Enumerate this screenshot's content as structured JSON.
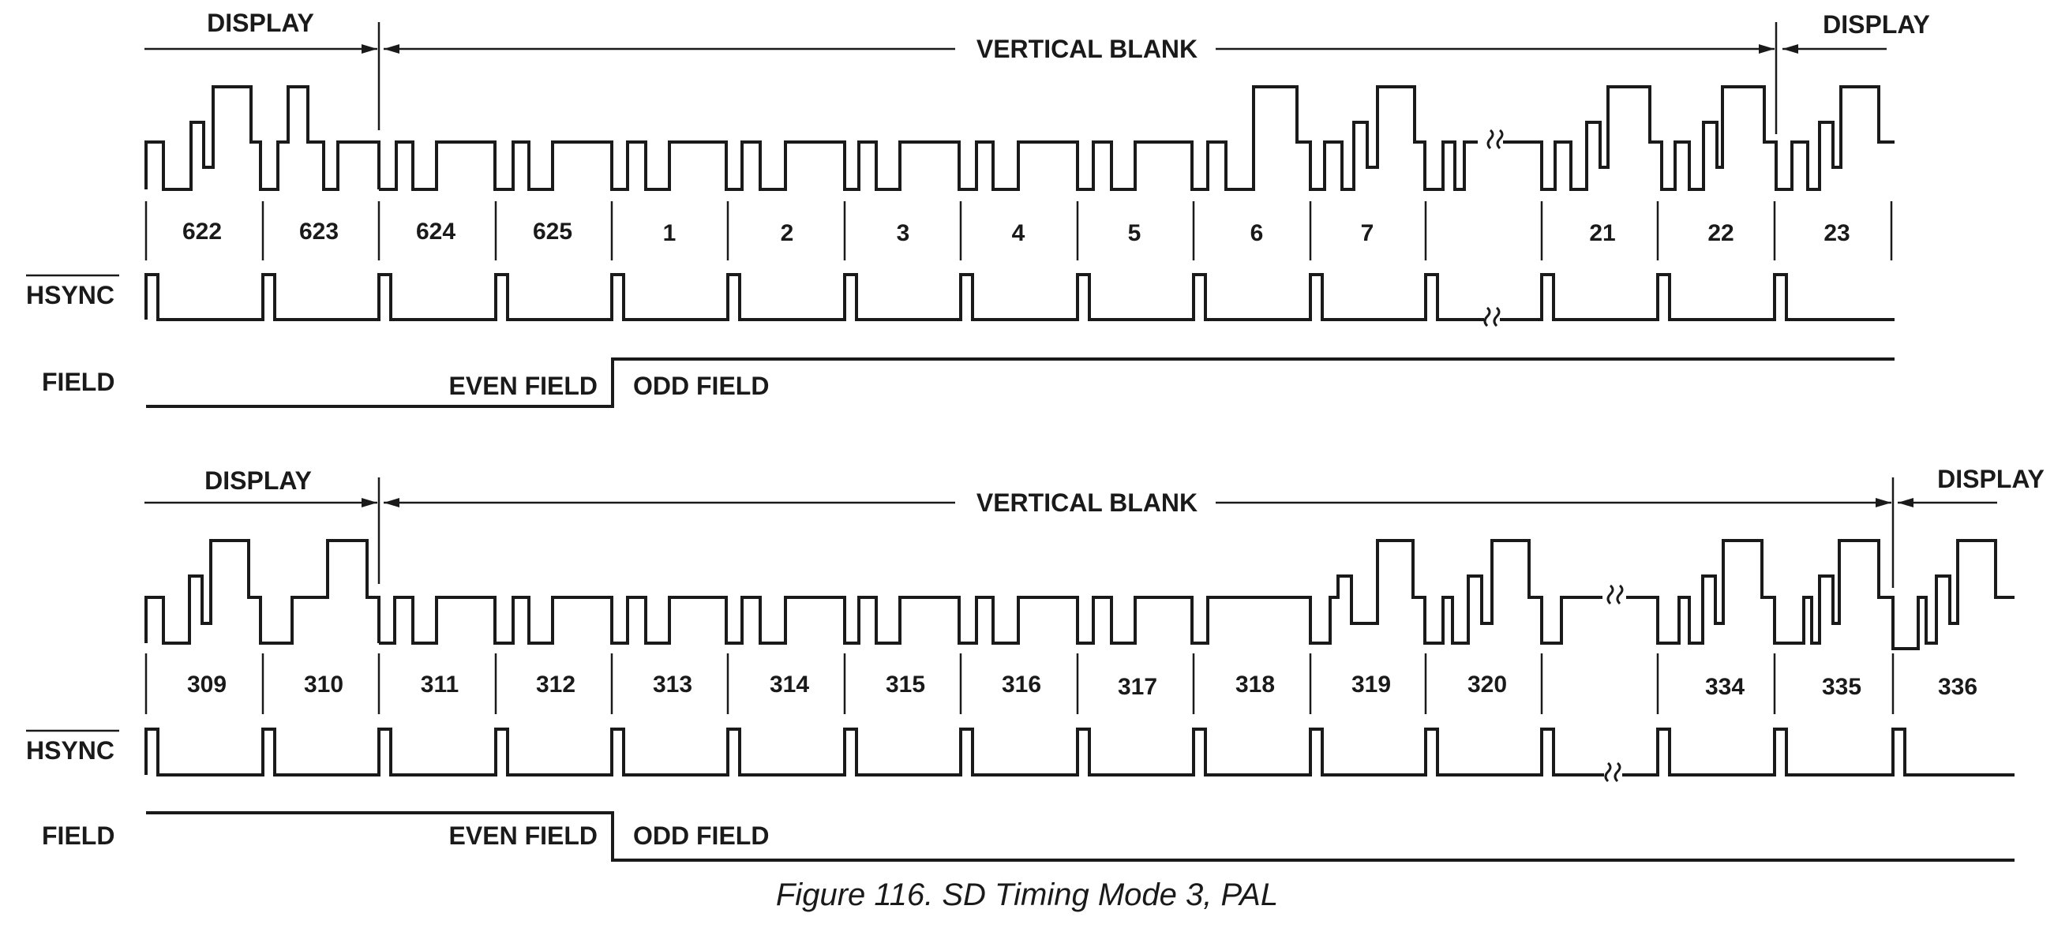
{
  "caption": "Figure 116. SD Timing Mode 3, PAL",
  "signals": {
    "hsync": "HSYNC",
    "field": "FIELD"
  },
  "panels": [
    {
      "id": "top",
      "region_labels": {
        "display_left": "DISPLAY",
        "vertical_blank": "VERTICAL BLANK",
        "display_right": "DISPLAY"
      },
      "line_numbers": [
        "622",
        "623",
        "624",
        "625",
        "1",
        "2",
        "3",
        "4",
        "5",
        "6",
        "7",
        "",
        "21",
        "22",
        "23"
      ],
      "field_labels": {
        "even": "EVEN FIELD",
        "odd": "ODD FIELD"
      },
      "field_transition": "low-to-high"
    },
    {
      "id": "bottom",
      "region_labels": {
        "display_left": "DISPLAY",
        "vertical_blank": "VERTICAL BLANK",
        "display_right": "DISPLAY"
      },
      "line_numbers": [
        "309",
        "310",
        "311",
        "312",
        "313",
        "314",
        "315",
        "316",
        "317",
        "318",
        "319",
        "320",
        "",
        "334",
        "335",
        "336"
      ],
      "field_labels": {
        "even": "EVEN FIELD",
        "odd": "ODD FIELD"
      },
      "field_transition": "high-to-low"
    }
  ]
}
